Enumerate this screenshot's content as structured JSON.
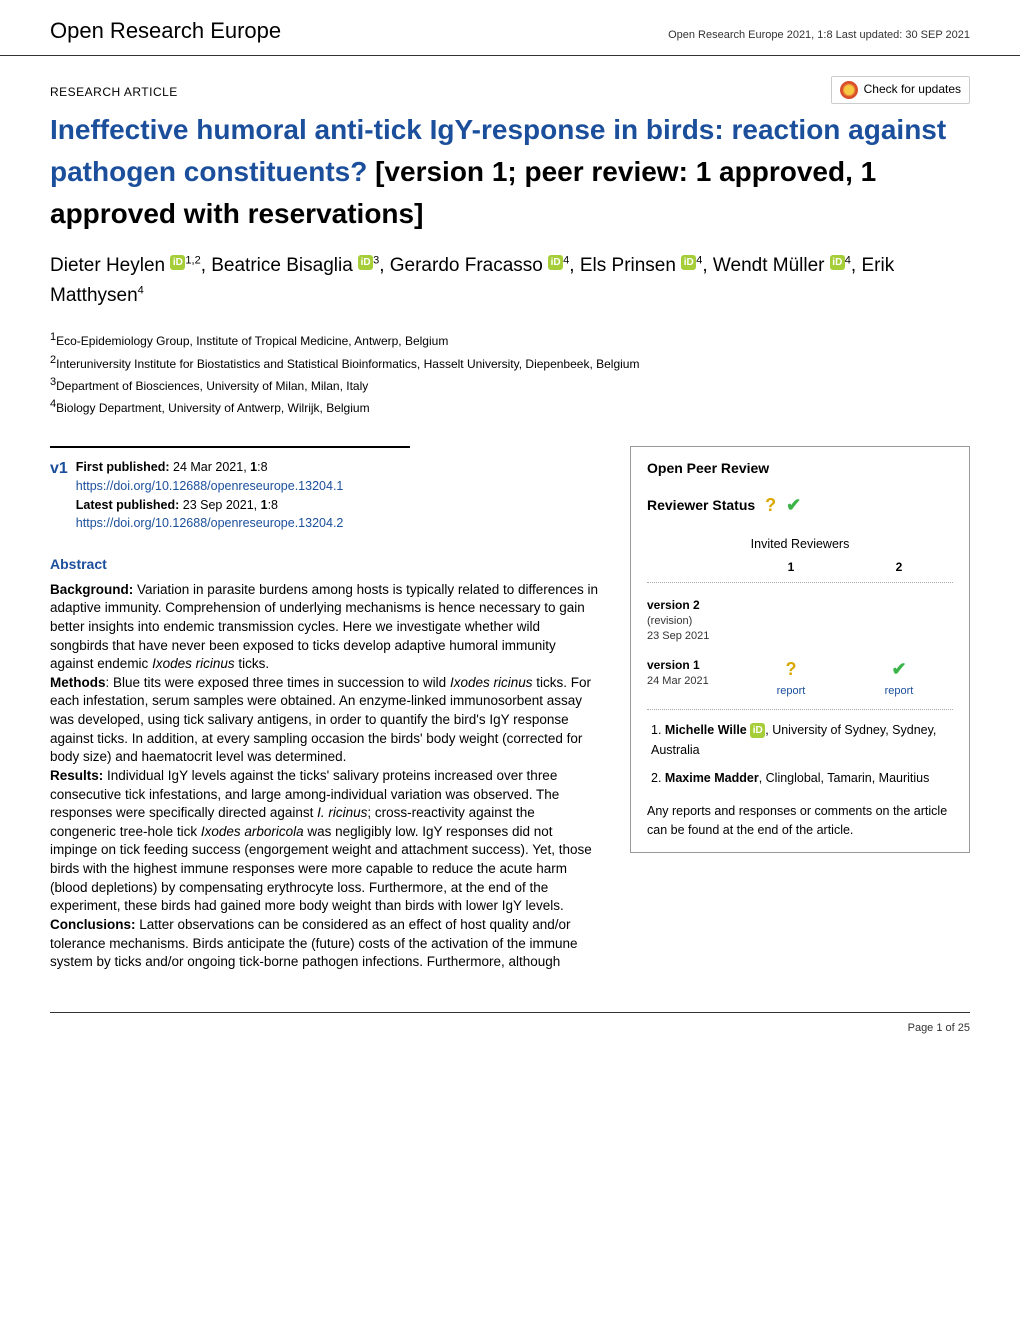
{
  "header": {
    "brand": "Open Research Europe",
    "meta": "Open Research Europe 2021, 1:8 Last updated: 30 SEP 2021"
  },
  "check_updates": {
    "label": "Check for updates"
  },
  "article_type": "RESEARCH ARTICLE",
  "title": {
    "main": "Ineffective humoral anti-tick IgY-response in birds: reaction against pathogen constituents? ",
    "status": "[version 1; peer review: 1 approved, 1 approved with reservations]"
  },
  "authors": [
    {
      "name": "Dieter Heylen",
      "orcid": true,
      "aff": "1,2"
    },
    {
      "name": "Beatrice Bisaglia",
      "orcid": true,
      "aff": "3"
    },
    {
      "name": "Gerardo Fracasso",
      "orcid": true,
      "aff": "4"
    },
    {
      "name": "Els Prinsen",
      "orcid": true,
      "aff": "4"
    },
    {
      "name": "Wendt Müller",
      "orcid": true,
      "aff": "4"
    },
    {
      "name": "Erik Matthysen",
      "orcid": false,
      "aff": "4"
    }
  ],
  "affiliations": [
    "Eco-Epidemiology Group, Institute of Tropical Medicine, Antwerp, Belgium",
    "Interuniversity Institute for Biostatistics and Statistical Bioinformatics, Hasselt University, Diepenbeek, Belgium",
    "Department of Biosciences, University of Milan, Milan, Italy",
    "Biology Department, University of Antwerp, Wilrijk, Belgium"
  ],
  "pub": {
    "v1_label": "v1",
    "first_label": "First published:",
    "first_value": " 24 Mar 2021, ",
    "first_vol": "1",
    "first_issue": ":8",
    "first_doi": "https://doi.org/10.12688/openreseurope.13204.1",
    "latest_label": "Latest published:",
    "latest_value": " 23 Sep 2021, ",
    "latest_vol": "1",
    "latest_issue": ":8",
    "latest_doi": "https://doi.org/10.12688/openreseurope.13204.2"
  },
  "abstract": {
    "heading": "Abstract",
    "sections": {
      "background_label": "Background:",
      "background": " Variation in parasite burdens among hosts is typically related to differences in adaptive immunity. Comprehension of underlying mechanisms is hence necessary to gain better insights into endemic transmission cycles. Here we investigate whether wild songbirds that have never been exposed to ticks develop adaptive humoral immunity against endemic ",
      "background_it1": "Ixodes ricinus",
      "background_tail": " ticks.",
      "methods_label": "Methods",
      "methods_colon": ": ",
      "methods_1": "Blue tits were exposed three times in succession to wild ",
      "methods_it1": "Ixodes ricinus",
      "methods_2": " ticks. For each infestation, serum samples were obtained. An enzyme-linked immunosorbent assay was developed, using tick salivary antigens, in order to quantify the bird's IgY response against ticks. In addition, at every sampling occasion the birds' body weight (corrected for body size) and haematocrit level was determined.",
      "results_label": "Results:",
      "results_1": " Individual IgY levels against the ticks' salivary proteins increased over three consecutive tick infestations, and large among-individual variation was observed. The responses were specifically directed against ",
      "results_it1": "I. ricinus",
      "results_2": "; cross-reactivity against the congeneric tree-hole tick ",
      "results_it2": "Ixodes arboricola",
      "results_3": " was negligibly low. IgY responses did not impinge on tick feeding success (engorgement weight and attachment success). Yet, those birds with the highest immune responses were more capable to reduce the acute harm (blood depletions) by compensating erythrocyte loss. Furthermore, at the end of the experiment, these birds had gained more body weight than birds with lower IgY levels.",
      "conclusions_label": "Conclusions:",
      "conclusions": " Latter observations can be considered as an effect of host quality and/or tolerance mechanisms. Birds anticipate the (future) costs of the activation of the immune system by ticks and/or ongoing tick-borne pathogen infections. Furthermore, although"
    }
  },
  "peer": {
    "box_title": "Open Peer Review",
    "status_label": "Reviewer Status",
    "invited_label": "Invited Reviewers",
    "col1": "1",
    "col2": "2",
    "versions": [
      {
        "name": "version 2",
        "sub1": "(revision)",
        "sub2": "23 Sep 2021",
        "r1": "",
        "r2": "",
        "r1_mark": "",
        "r2_mark": ""
      },
      {
        "name": "version 1",
        "sub1": "",
        "sub2": "24 Mar 2021",
        "r1": "report",
        "r2": "report",
        "r1_mark": "?",
        "r2_mark": "✔"
      }
    ],
    "reviewers": [
      {
        "num": "1.",
        "name": "Michelle Wille",
        "orcid": true,
        "aff": ", University of Sydney, Sydney, Australia"
      },
      {
        "num": "2.",
        "name": "Maxime Madder",
        "orcid": false,
        "aff": ", Clinglobal, Tamarin, Mauritius"
      }
    ],
    "footnote": "Any reports and responses or comments on the article can be found at the end of the article."
  },
  "footer": {
    "page": "Page 1 of 25"
  },
  "colors": {
    "link": "#1b4f9c",
    "orcid": "#a6ce39",
    "status_q": "#d9a800",
    "status_check": "#3bb54a"
  }
}
